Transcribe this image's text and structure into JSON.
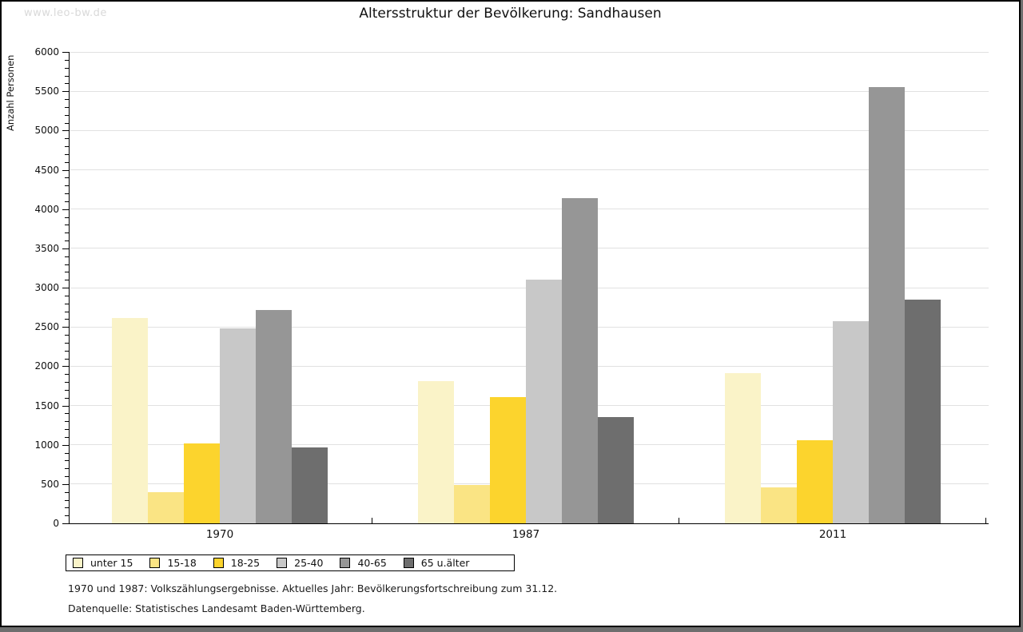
{
  "watermark": "www.leo-bw.de",
  "title": "Altersstruktur der Bevölkerung: Sandhausen",
  "footnote1": "1970 und 1987: Volkszählungsergebnisse. Aktuelles Jahr: Bevölkerungsfortschreibung zum 31.12.",
  "footnote2": "Datenquelle: Statistisches Landesamt Baden-Württemberg.",
  "chart_data": {
    "type": "bar",
    "title": "Altersstruktur der Bevölkerung: Sandhausen",
    "ylabel": "Anzahl Personen",
    "xlabel": "",
    "categories": [
      "1970",
      "1987",
      "2011"
    ],
    "series": [
      {
        "name": "unter 15",
        "color": "#faf3c8",
        "values": [
          2610,
          1810,
          1910
        ]
      },
      {
        "name": "15-18",
        "color": "#fae484",
        "values": [
          400,
          490,
          460
        ]
      },
      {
        "name": "18-25",
        "color": "#fcd42d",
        "values": [
          1020,
          1610,
          1060
        ]
      },
      {
        "name": "25-40",
        "color": "#c8c8c8",
        "values": [
          2480,
          3100,
          2570
        ]
      },
      {
        "name": "40-65",
        "color": "#969696",
        "values": [
          2720,
          4140,
          5550
        ]
      },
      {
        "name": "65 u.älter",
        "color": "#6e6e6e",
        "values": [
          970,
          1350,
          2850
        ]
      }
    ],
    "ylim": [
      0,
      6000
    ],
    "ytick_step": 500,
    "ytick_minor_step": 100,
    "grid": true,
    "legend_position": "bottom",
    "gridline_color": "#e1e1e1",
    "axis_color": "#000000"
  }
}
